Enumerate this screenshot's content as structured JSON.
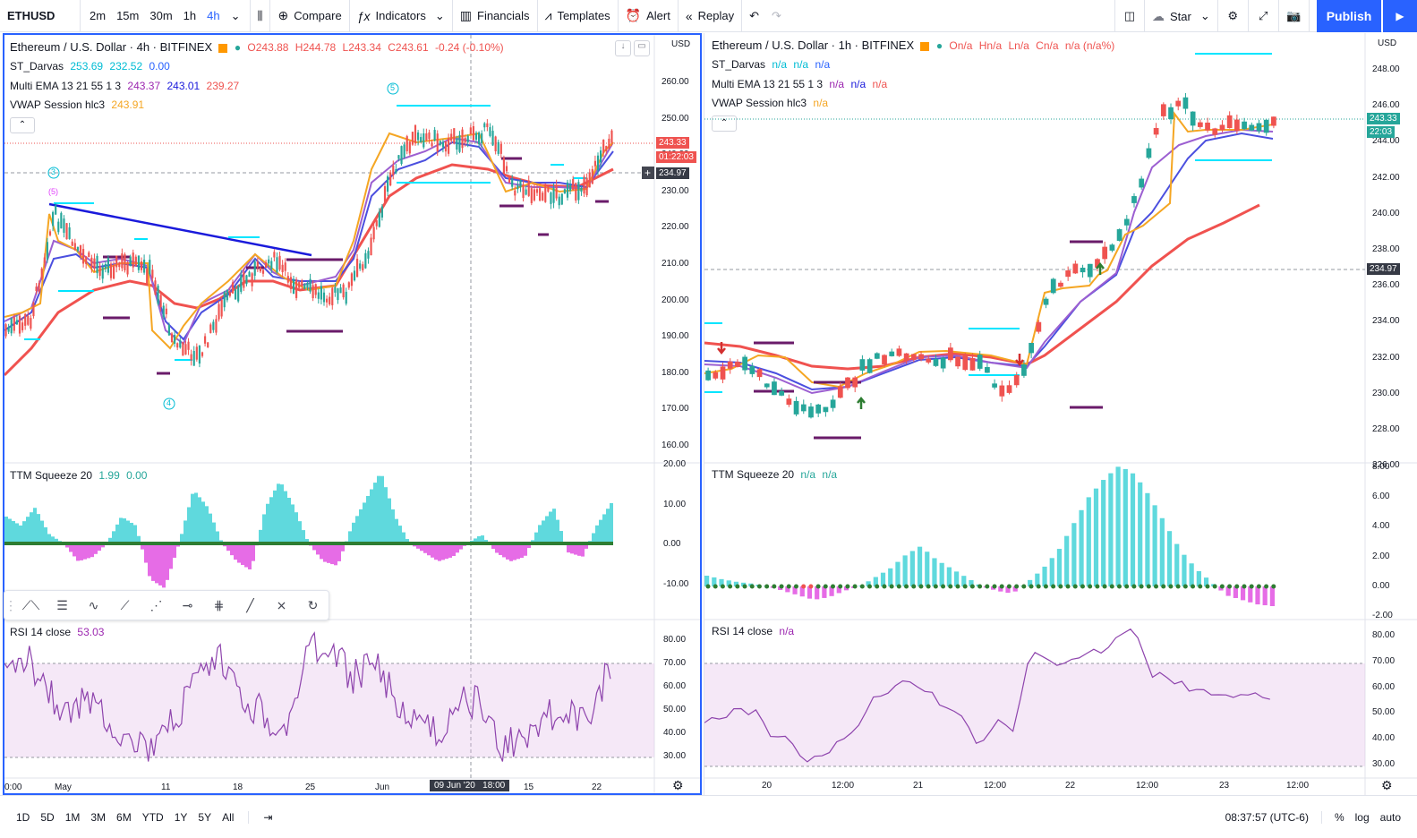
{
  "toolbar": {
    "symbol": "ETHUSD",
    "timeframes": [
      "2m",
      "15m",
      "30m",
      "1h",
      "4h"
    ],
    "active_timeframe": "4h",
    "compare": "Compare",
    "indicators": "Indicators",
    "financials": "Financials",
    "templates": "Templates",
    "alert": "Alert",
    "replay": "Replay",
    "star": "Star",
    "publish": "Publish"
  },
  "left": {
    "title": "Ethereum / U.S. Dollar · 4h · BITFINEX",
    "ohlc": {
      "o": "O243.88",
      "h": "H244.78",
      "l": "L243.34",
      "c": "C243.61",
      "chg": "-0.24 (-0.10%)"
    },
    "darvas": {
      "name": "ST_Darvas",
      "v1": "253.69",
      "v2": "232.52",
      "v3": "0.00"
    },
    "ema": {
      "name": "Multi EMA 13 21 55 1 3",
      "v1": "243.37",
      "v2": "243.01",
      "v3": "239.27"
    },
    "vwap": {
      "name": "VWAP Session hlc3",
      "v1": "243.91"
    },
    "currency": "USD",
    "price_ticks": [
      "260.00",
      "250.00",
      "240.00",
      "230.00",
      "220.00",
      "210.00",
      "200.00",
      "190.00",
      "180.00",
      "170.00",
      "160.00"
    ],
    "last_price": "243.33",
    "countdown": "01:22:03",
    "crosshair_price": "234.97",
    "ttm": {
      "name": "TTM Squeeze 20",
      "v1": "1.99",
      "v2": "0.00",
      "ticks": [
        "20.00",
        "10.00",
        "0.00",
        "-10.00"
      ]
    },
    "rsi": {
      "name": "RSI 14 close",
      "v1": "53.03",
      "ticks": [
        "80.00",
        "70.00",
        "60.00",
        "50.00",
        "40.00",
        "30.00"
      ]
    },
    "time_ticks": [
      "0:00",
      "May",
      "11",
      "18",
      "25",
      "Jun",
      "15",
      "22"
    ],
    "crosshair_time": "09 Jun '20   18:00",
    "marks": {
      "m3": "3",
      "m5": "(5)",
      "m5b": "5",
      "m4": "4"
    }
  },
  "right": {
    "title": "Ethereum / U.S. Dollar · 1h · BITFINEX",
    "ohlc": {
      "o": "On/a",
      "h": "Hn/a",
      "l": "Ln/a",
      "c": "Cn/a",
      "chg": "n/a (n/a%)"
    },
    "darvas": {
      "name": "ST_Darvas",
      "v1": "n/a",
      "v2": "n/a",
      "v3": "n/a"
    },
    "ema": {
      "name": "Multi EMA 13 21 55 1 3",
      "v1": "n/a",
      "v2": "n/a",
      "v3": "n/a"
    },
    "vwap": {
      "name": "VWAP Session hlc3",
      "v1": "n/a"
    },
    "currency": "USD",
    "price_ticks": [
      "248.00",
      "246.00",
      "244.00",
      "242.00",
      "240.00",
      "238.00",
      "236.00",
      "234.00",
      "232.00",
      "230.00",
      "228.00",
      "226.00"
    ],
    "last_price": "243.33",
    "countdown": "22:03",
    "crosshair_price": "234.97",
    "ttm": {
      "name": "TTM Squeeze 20",
      "v1": "n/a",
      "v2": "n/a",
      "ticks": [
        "8.00",
        "6.00",
        "4.00",
        "2.00",
        "0.00",
        "-2.00"
      ]
    },
    "rsi": {
      "name": "RSI 14 close",
      "v1": "n/a",
      "ticks": [
        "80.00",
        "70.00",
        "60.00",
        "50.00",
        "40.00",
        "30.00"
      ]
    },
    "time_ticks": [
      "20",
      "12:00",
      "21",
      "12:00",
      "22",
      "12:00",
      "23",
      "12:00"
    ]
  },
  "bottom": {
    "ranges": [
      "1D",
      "5D",
      "1M",
      "3M",
      "6M",
      "YTD",
      "1Y",
      "5Y",
      "All"
    ],
    "clock": "08:37:57 (UTC-6)",
    "percent": "%",
    "log": "log",
    "auto": "auto"
  },
  "colors": {
    "accent": "#2962ff",
    "up": "#26a69a",
    "down": "#ef5350",
    "ema_red": "#f0524f",
    "ema_blue": "#4b4fdf",
    "ema_violet": "#9c5fd1",
    "vwap": "#f5a623",
    "darvas": "#00e5ff",
    "rsi": "#8e44ad"
  }
}
